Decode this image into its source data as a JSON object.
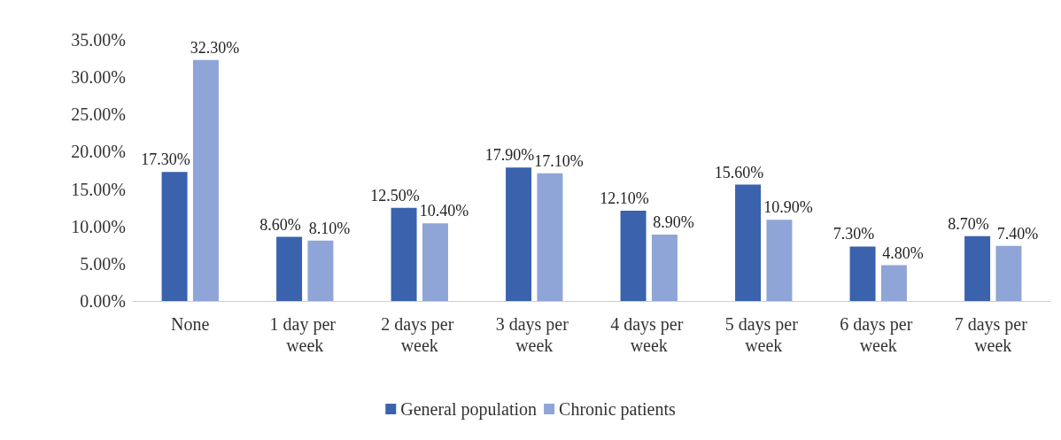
{
  "chart_data": {
    "type": "bar",
    "categories": [
      "None",
      "1 day per week",
      "2 days per week",
      "3 days per week",
      "4 days per week",
      "5 days per week",
      "6 days per week",
      "7 days per week"
    ],
    "series": [
      {
        "name": "General population",
        "color": "#3a62ad",
        "values": [
          17.3,
          8.6,
          12.5,
          17.9,
          12.1,
          15.6,
          7.3,
          8.7
        ],
        "value_labels": [
          "17.30%",
          "8.60%",
          "12.50%",
          "17.90%",
          "12.10%",
          "15.60%",
          "7.30%",
          "8.70%"
        ]
      },
      {
        "name": "Chronic patients",
        "color": "#8fa5d7",
        "values": [
          32.3,
          8.1,
          10.4,
          17.1,
          8.9,
          10.9,
          4.8,
          7.4
        ],
        "value_labels": [
          "32.30%",
          "8.10%",
          "10.40%",
          "17.10%",
          "8.90%",
          "10.90%",
          "4.80%",
          "7.40%"
        ]
      }
    ],
    "ylim": [
      0,
      35
    ],
    "yticks": [
      {
        "value": 0,
        "label": "0.00%"
      },
      {
        "value": 5,
        "label": "5.00%"
      },
      {
        "value": 10,
        "label": "10.00%"
      },
      {
        "value": 15,
        "label": "15.00%"
      },
      {
        "value": 20,
        "label": "20.00%"
      },
      {
        "value": 25,
        "label": "25.00%"
      },
      {
        "value": 30,
        "label": "30.00%"
      },
      {
        "value": 35,
        "label": "35.00%"
      }
    ],
    "grid": false,
    "legend": "bottom"
  }
}
